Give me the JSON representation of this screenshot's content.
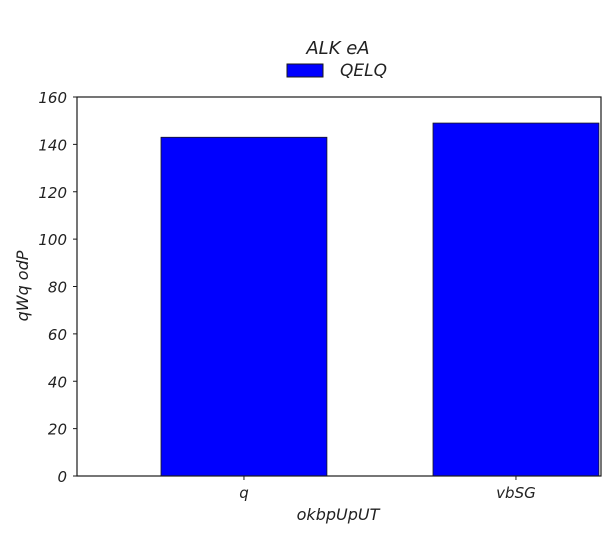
{
  "chart_data": {
    "type": "bar",
    "title": "ALK eA",
    "xlabel": "okbpUpUT",
    "ylabel": "qWq odP",
    "categories": [
      "q",
      "vbSG"
    ],
    "series": [
      {
        "name": "QELQ",
        "values": [
          143,
          149
        ],
        "color": "#0000ff"
      }
    ],
    "ylim": [
      0,
      160
    ],
    "yticks": [
      "0",
      "20",
      "40",
      "60",
      "80",
      "100",
      "120",
      "140",
      "160"
    ],
    "grid": false,
    "legend_position": "top-center"
  }
}
